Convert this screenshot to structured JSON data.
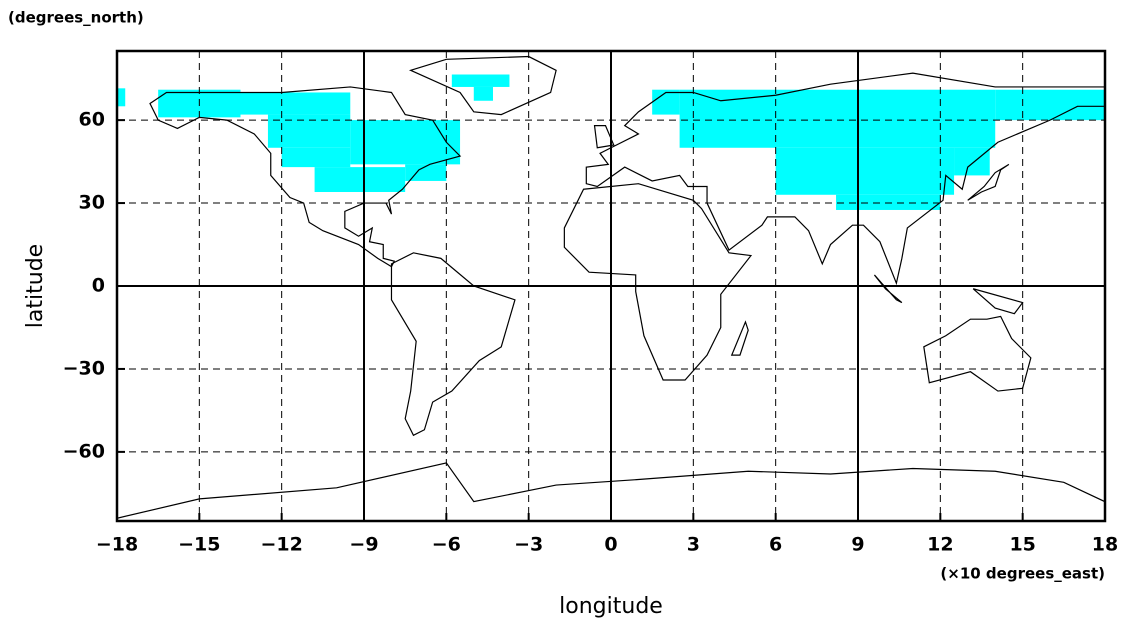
{
  "chart_data": {
    "type": "map",
    "y_axis_unit": "(degrees_north)",
    "y_axis_label": "latitude",
    "x_axis_label": "longitude",
    "x_axis_unit": "(×10 degrees_east)",
    "xlim": [
      -18,
      18
    ],
    "ylim": [
      -85,
      85
    ],
    "xticks": [
      {
        "value": -18,
        "label": "−18"
      },
      {
        "value": -15,
        "label": "−15"
      },
      {
        "value": -12,
        "label": "−12"
      },
      {
        "value": -9,
        "label": "−9"
      },
      {
        "value": -6,
        "label": "−6"
      },
      {
        "value": -3,
        "label": "−3"
      },
      0,
      3,
      6,
      9,
      12,
      15,
      18
    ],
    "yticks": [
      {
        "value": -60,
        "label": "−60"
      },
      {
        "value": -30,
        "label": "−30"
      },
      0,
      30,
      60
    ],
    "solid_xlines": [
      -9,
      0,
      9
    ],
    "solid_ylines": [
      0
    ],
    "grid": true,
    "mask_color": "#00ffff",
    "mask_cells": [
      [
        -18,
        -17.7,
        65,
        71.5
      ],
      [
        -16.5,
        -13.5,
        61,
        71
      ],
      [
        -13.5,
        -9.5,
        62,
        70
      ],
      [
        -12.5,
        -9.5,
        50,
        62
      ],
      [
        -12,
        -9.5,
        43,
        50
      ],
      [
        -10.8,
        -7.5,
        34,
        43
      ],
      [
        -9.5,
        -5.5,
        44,
        60
      ],
      [
        -7.5,
        -6,
        38,
        44
      ],
      [
        -5.8,
        -3.7,
        72,
        76.5
      ],
      [
        -5,
        -4.3,
        67,
        72
      ],
      [
        1.5,
        2.5,
        62,
        71
      ],
      [
        2.5,
        14,
        50,
        71
      ],
      [
        14,
        18,
        60,
        71
      ],
      [
        6,
        12.5,
        33,
        50
      ],
      [
        8.2,
        12,
        27.5,
        33
      ],
      [
        12.5,
        13.8,
        40,
        50
      ]
    ]
  }
}
